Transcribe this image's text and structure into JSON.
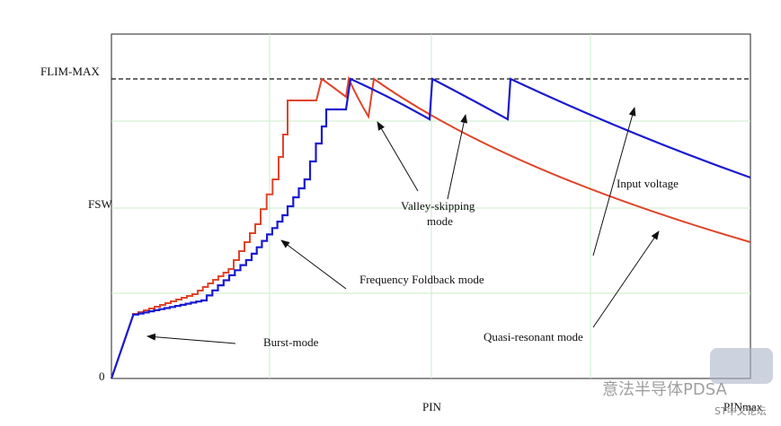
{
  "axes": {
    "y_top": "FLIM-MAX",
    "y_mid": "FSW",
    "origin": "0",
    "x_mid": "PIN",
    "x_end": "PINmax"
  },
  "annotations": {
    "burst": "Burst-mode",
    "foldback": "Frequency Foldback mode",
    "valley_1": "Valley-skipping",
    "valley_2": "mode",
    "input": "Input voltage",
    "quasi": "Quasi-resonant mode"
  },
  "watermark": {
    "main": "意法半导体PDSA",
    "sub": "ST中文论坛"
  }
}
